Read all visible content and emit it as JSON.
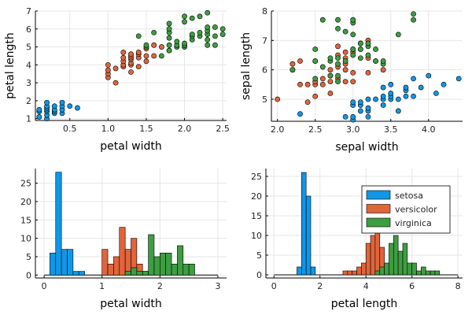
{
  "colors": {
    "setosa": "#0f97e8",
    "versicolor": "#e2643a",
    "virginica": "#3d9e41"
  },
  "chart_data": [
    {
      "type": "scatter",
      "xlabel": "petal width",
      "ylabel": "petal length",
      "xlim": [
        0.05,
        2.55
      ],
      "ylim": [
        0.9,
        7.0
      ],
      "xticks": [
        0.5,
        1.0,
        1.5,
        2.0,
        2.5
      ],
      "yticks": [
        1,
        2,
        3,
        4,
        5,
        6,
        7
      ],
      "grid": true,
      "series": [
        {
          "key": "setosa",
          "points": [
            [
              0.1,
              1.1
            ],
            [
              0.1,
              1.4
            ],
            [
              0.1,
              1.5
            ],
            [
              0.2,
              1.0
            ],
            [
              0.2,
              1.2
            ],
            [
              0.2,
              1.4
            ],
            [
              0.2,
              1.5
            ],
            [
              0.2,
              1.6
            ],
            [
              0.2,
              1.7
            ],
            [
              0.2,
              1.9
            ],
            [
              0.3,
              1.3
            ],
            [
              0.3,
              1.4
            ],
            [
              0.3,
              1.5
            ],
            [
              0.3,
              1.7
            ],
            [
              0.4,
              1.3
            ],
            [
              0.4,
              1.5
            ],
            [
              0.4,
              1.7
            ],
            [
              0.4,
              1.9
            ],
            [
              0.5,
              1.7
            ],
            [
              0.6,
              1.6
            ]
          ]
        },
        {
          "key": "versicolor",
          "points": [
            [
              1.0,
              3.3
            ],
            [
              1.0,
              3.5
            ],
            [
              1.0,
              3.7
            ],
            [
              1.0,
              4.0
            ],
            [
              1.1,
              3.0
            ],
            [
              1.1,
              3.8
            ],
            [
              1.2,
              3.9
            ],
            [
              1.2,
              4.0
            ],
            [
              1.2,
              4.2
            ],
            [
              1.2,
              4.4
            ],
            [
              1.2,
              4.7
            ],
            [
              1.3,
              3.6
            ],
            [
              1.3,
              4.0
            ],
            [
              1.3,
              4.1
            ],
            [
              1.3,
              4.3
            ],
            [
              1.3,
              4.4
            ],
            [
              1.3,
              4.5
            ],
            [
              1.3,
              4.6
            ],
            [
              1.4,
              3.9
            ],
            [
              1.4,
              4.4
            ],
            [
              1.4,
              4.6
            ],
            [
              1.4,
              4.7
            ],
            [
              1.5,
              4.2
            ],
            [
              1.5,
              4.5
            ],
            [
              1.5,
              4.9
            ],
            [
              1.6,
              4.5
            ],
            [
              1.6,
              5.1
            ],
            [
              1.7,
              5.0
            ],
            [
              1.8,
              4.8
            ]
          ]
        },
        {
          "key": "virginica",
          "points": [
            [
              1.4,
              5.6
            ],
            [
              1.5,
              5.0
            ],
            [
              1.5,
              5.1
            ],
            [
              1.6,
              5.8
            ],
            [
              1.7,
              4.5
            ],
            [
              1.8,
              4.8
            ],
            [
              1.8,
              5.1
            ],
            [
              1.8,
              5.5
            ],
            [
              1.8,
              5.8
            ],
            [
              1.8,
              6.0
            ],
            [
              1.8,
              6.3
            ],
            [
              1.9,
              5.0
            ],
            [
              1.9,
              5.1
            ],
            [
              1.9,
              5.3
            ],
            [
              2.0,
              5.0
            ],
            [
              2.0,
              5.1
            ],
            [
              2.0,
              5.2
            ],
            [
              2.0,
              6.4
            ],
            [
              2.0,
              6.7
            ],
            [
              2.1,
              5.4
            ],
            [
              2.1,
              5.6
            ],
            [
              2.1,
              5.7
            ],
            [
              2.1,
              6.6
            ],
            [
              2.2,
              5.6
            ],
            [
              2.2,
              5.8
            ],
            [
              2.2,
              6.7
            ],
            [
              2.3,
              5.1
            ],
            [
              2.3,
              5.4
            ],
            [
              2.3,
              5.7
            ],
            [
              2.3,
              5.9
            ],
            [
              2.3,
              6.1
            ],
            [
              2.3,
              6.9
            ],
            [
              2.4,
              5.1
            ],
            [
              2.4,
              5.6
            ],
            [
              2.4,
              6.1
            ],
            [
              2.5,
              5.7
            ],
            [
              2.5,
              6.0
            ]
          ]
        }
      ]
    },
    {
      "type": "scatter",
      "xlabel": "sepal width",
      "ylabel": "sepal length",
      "xlim": [
        1.92,
        4.45
      ],
      "ylim": [
        4.25,
        8.0
      ],
      "xticks": [
        2.0,
        2.5,
        3.0,
        3.5,
        4.0
      ],
      "yticks": [
        5,
        6,
        7,
        8
      ],
      "grid": true,
      "series": [
        {
          "key": "setosa",
          "points": [
            [
              2.3,
              4.5
            ],
            [
              2.9,
              4.4
            ],
            [
              3.0,
              4.3
            ],
            [
              3.0,
              4.4
            ],
            [
              3.0,
              4.8
            ],
            [
              3.0,
              4.9
            ],
            [
              3.1,
              4.6
            ],
            [
              3.1,
              4.8
            ],
            [
              3.1,
              4.9
            ],
            [
              3.2,
              4.4
            ],
            [
              3.2,
              4.6
            ],
            [
              3.2,
              4.7
            ],
            [
              3.2,
              5.0
            ],
            [
              3.3,
              5.0
            ],
            [
              3.4,
              4.8
            ],
            [
              3.4,
              5.0
            ],
            [
              3.4,
              5.1
            ],
            [
              3.4,
              5.4
            ],
            [
              3.5,
              5.0
            ],
            [
              3.5,
              5.1
            ],
            [
              3.5,
              5.2
            ],
            [
              3.5,
              5.5
            ],
            [
              3.6,
              4.6
            ],
            [
              3.6,
              5.0
            ],
            [
              3.7,
              5.1
            ],
            [
              3.7,
              5.3
            ],
            [
              3.7,
              5.4
            ],
            [
              3.8,
              5.1
            ],
            [
              3.8,
              5.7
            ],
            [
              3.9,
              5.4
            ],
            [
              4.0,
              5.8
            ],
            [
              4.1,
              5.2
            ],
            [
              4.2,
              5.5
            ],
            [
              4.4,
              5.7
            ]
          ]
        },
        {
          "key": "versicolor",
          "points": [
            [
              2.0,
              5.0
            ],
            [
              2.2,
              6.0
            ],
            [
              2.2,
              6.2
            ],
            [
              2.3,
              5.5
            ],
            [
              2.3,
              6.3
            ],
            [
              2.4,
              4.9
            ],
            [
              2.4,
              5.5
            ],
            [
              2.5,
              5.1
            ],
            [
              2.5,
              5.5
            ],
            [
              2.5,
              5.6
            ],
            [
              2.5,
              6.3
            ],
            [
              2.6,
              5.5
            ],
            [
              2.6,
              5.7
            ],
            [
              2.7,
              5.2
            ],
            [
              2.7,
              5.6
            ],
            [
              2.7,
              5.8
            ],
            [
              2.7,
              6.0
            ],
            [
              2.8,
              5.7
            ],
            [
              2.8,
              6.1
            ],
            [
              2.8,
              6.5
            ],
            [
              2.8,
              6.8
            ],
            [
              2.9,
              5.6
            ],
            [
              2.9,
              6.0
            ],
            [
              2.9,
              6.2
            ],
            [
              2.9,
              6.4
            ],
            [
              2.9,
              6.6
            ],
            [
              3.0,
              5.6
            ],
            [
              3.0,
              5.9
            ],
            [
              3.0,
              6.6
            ],
            [
              3.0,
              6.7
            ],
            [
              3.1,
              6.7
            ],
            [
              3.1,
              6.9
            ],
            [
              3.2,
              5.9
            ],
            [
              3.2,
              6.4
            ],
            [
              3.2,
              7.0
            ],
            [
              3.3,
              6.3
            ],
            [
              3.4,
              6.0
            ]
          ]
        },
        {
          "key": "virginica",
          "points": [
            [
              2.2,
              6.0
            ],
            [
              2.5,
              5.7
            ],
            [
              2.5,
              6.3
            ],
            [
              2.5,
              6.7
            ],
            [
              2.6,
              6.1
            ],
            [
              2.6,
              7.7
            ],
            [
              2.7,
              5.8
            ],
            [
              2.7,
              6.3
            ],
            [
              2.7,
              6.4
            ],
            [
              2.8,
              5.6
            ],
            [
              2.8,
              5.8
            ],
            [
              2.8,
              6.2
            ],
            [
              2.8,
              6.4
            ],
            [
              2.8,
              7.4
            ],
            [
              2.8,
              7.7
            ],
            [
              2.9,
              6.3
            ],
            [
              2.9,
              7.3
            ],
            [
              3.0,
              6.5
            ],
            [
              3.0,
              6.7
            ],
            [
              3.0,
              7.2
            ],
            [
              3.0,
              7.6
            ],
            [
              3.0,
              7.7
            ],
            [
              3.1,
              6.4
            ],
            [
              3.1,
              6.7
            ],
            [
              3.1,
              6.9
            ],
            [
              3.2,
              6.5
            ],
            [
              3.2,
              6.8
            ],
            [
              3.2,
              6.9
            ],
            [
              3.3,
              6.3
            ],
            [
              3.3,
              6.7
            ],
            [
              3.4,
              6.2
            ],
            [
              3.4,
              6.3
            ],
            [
              3.6,
              7.2
            ],
            [
              3.8,
              7.7
            ],
            [
              3.8,
              7.9
            ]
          ]
        }
      ]
    },
    {
      "type": "bar",
      "xlabel": "petal width",
      "ylabel": "",
      "xlim": [
        -0.15,
        3.15
      ],
      "ylim": [
        -0.8,
        29
      ],
      "xticks": [
        0,
        1,
        2,
        3
      ],
      "yticks": [
        0,
        5,
        10,
        15,
        20,
        25
      ],
      "grid": true,
      "baseline_range": [
        0.0,
        3.0
      ],
      "bin_width": 0.1,
      "series": [
        {
          "key": "setosa",
          "start": 0.1,
          "counts": [
            6,
            28,
            7,
            7,
            1,
            1
          ]
        },
        {
          "key": "versicolor",
          "start": 1.0,
          "counts": [
            7,
            3,
            5,
            13,
            7,
            10,
            3,
            1,
            1
          ]
        },
        {
          "key": "virginica",
          "start": 1.4,
          "counts": [
            1,
            2,
            1,
            1,
            11,
            5,
            6,
            6,
            3,
            8,
            3,
            3
          ]
        }
      ]
    },
    {
      "type": "bar",
      "xlabel": "petal length",
      "ylabel": "",
      "xlim": [
        -0.35,
        8.2
      ],
      "ylim": [
        -0.8,
        27
      ],
      "xticks": [
        0,
        2,
        4,
        6,
        8
      ],
      "yticks": [
        0,
        5,
        10,
        15,
        20,
        25
      ],
      "grid": true,
      "baseline_range": [
        0.0,
        8.0
      ],
      "bin_width": 0.2,
      "legend": {
        "position": "top-right",
        "entries": [
          "setosa",
          "versicolor",
          "virginica"
        ]
      },
      "series": [
        {
          "key": "setosa",
          "start": 1.0,
          "counts": [
            2,
            26,
            20,
            2
          ]
        },
        {
          "key": "versicolor",
          "start": 3.0,
          "counts": [
            1,
            1,
            1,
            2,
            3,
            8,
            10,
            15,
            7,
            1
          ]
        },
        {
          "key": "virginica",
          "start": 4.4,
          "counts": [
            1,
            2,
            3,
            8,
            10,
            6,
            8,
            3,
            3,
            1,
            2,
            1,
            1,
            1
          ]
        }
      ]
    }
  ]
}
